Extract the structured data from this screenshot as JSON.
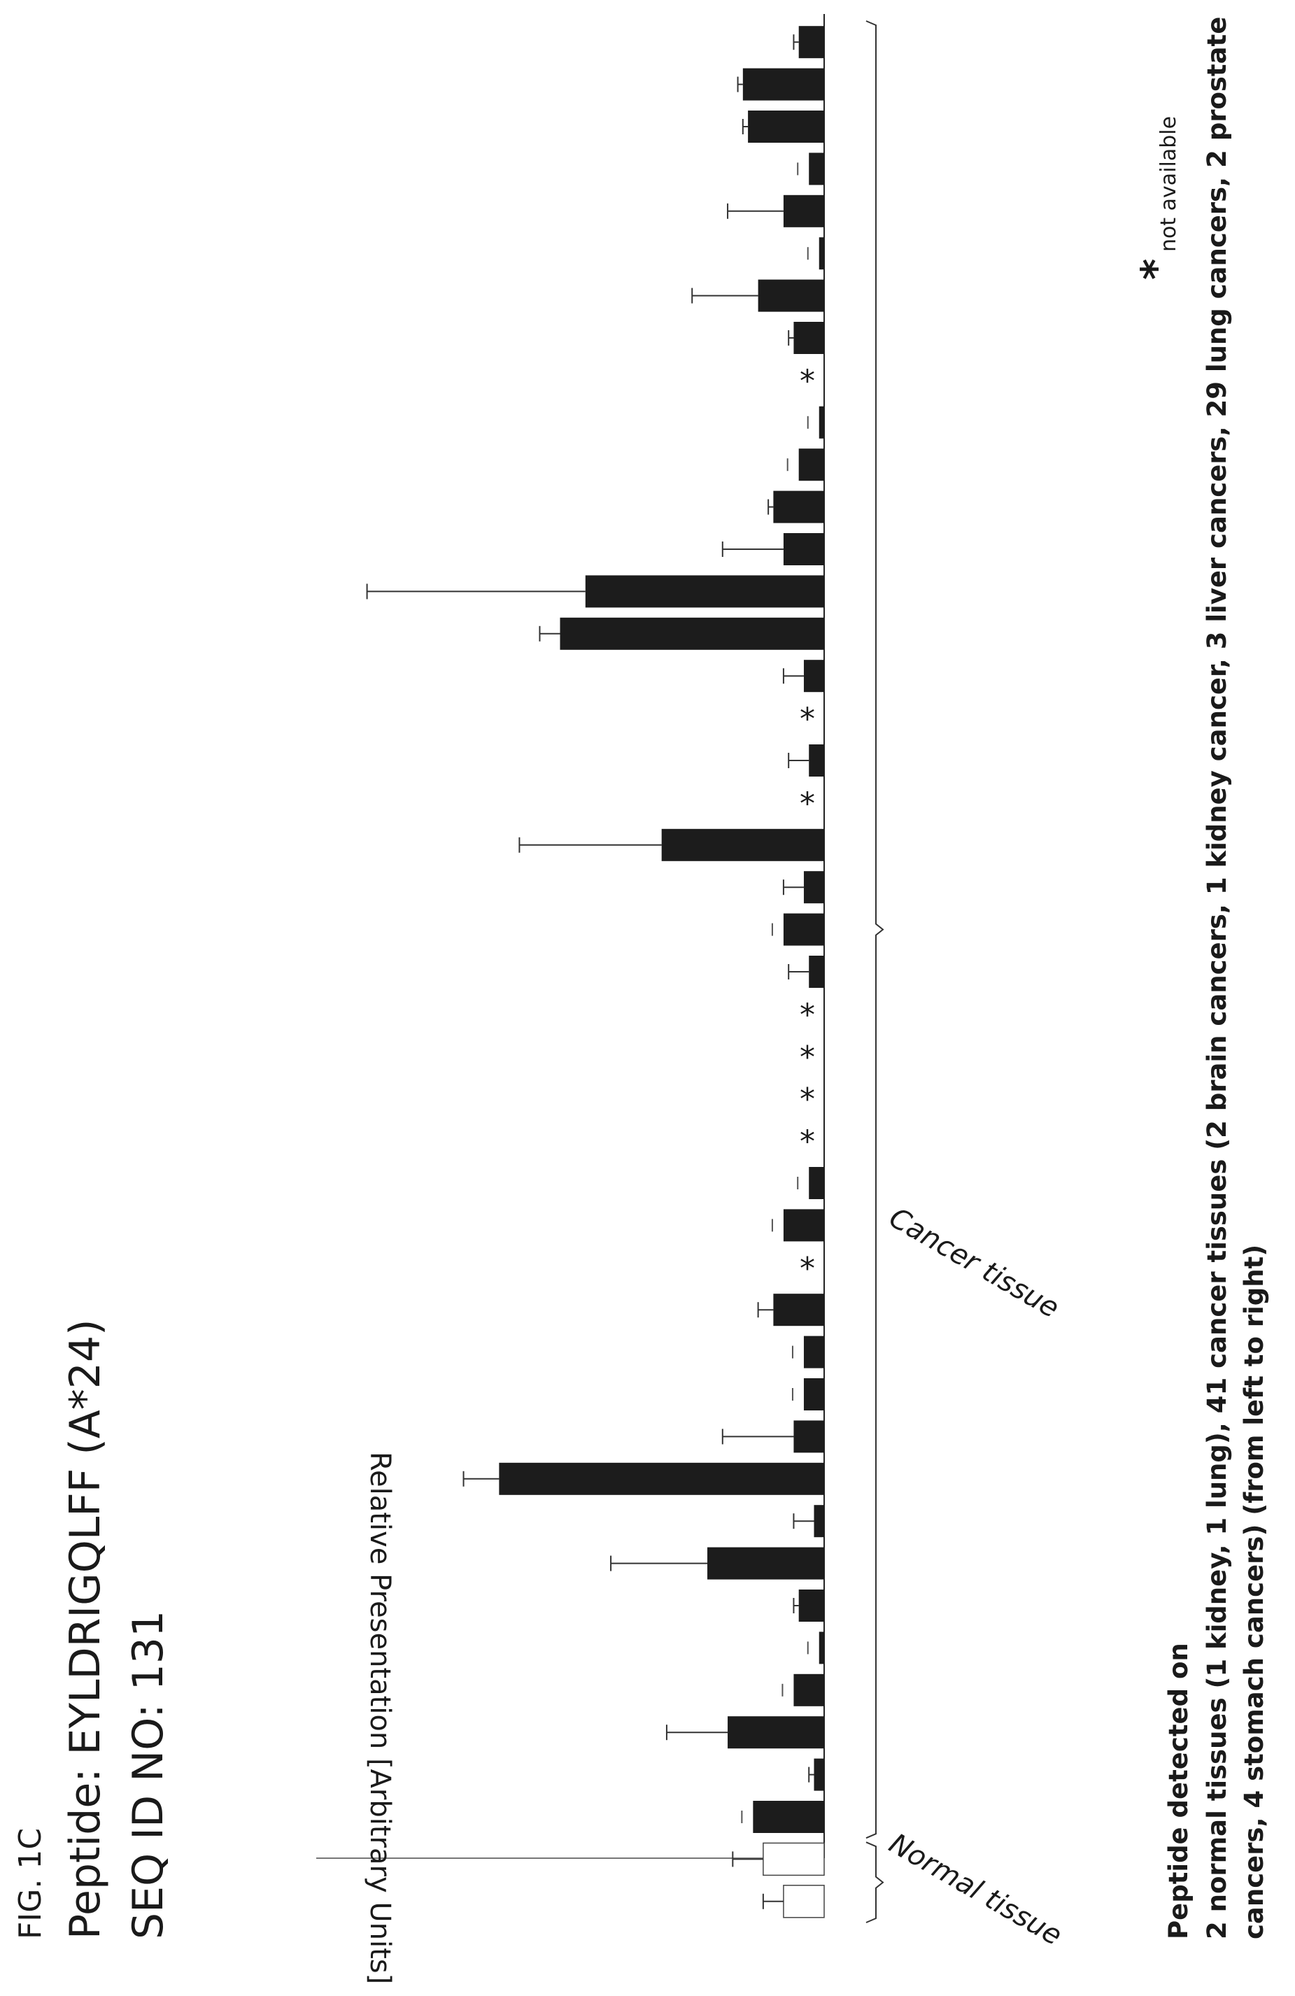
{
  "figure": {
    "label": "FIG. 1C",
    "peptide_line": "Peptide: EYLDRIGQLFF (A*24)",
    "seq_line": "SEQ ID NO: 131"
  },
  "caption": {
    "line1": "Peptide detected on",
    "line2": "2 normal tissues (1 kidney, 1 lung), 41 cancer tissues (2 brain cancers, 1 kidney cancer, 3 liver cancers, 29 lung cancers, 2 prostate",
    "line3": "cancers, 4 stomach cancers) (from left to right)"
  },
  "footnote": {
    "symbol": "*",
    "text": "not available"
  },
  "chart_data": {
    "type": "bar",
    "orientation": "rotated 90 degrees clockwise on page; samples run top to bottom",
    "ylabel": "Relative Presentation [Arbitrary Units]",
    "ylim": [
      0,
      100
    ],
    "groups": [
      {
        "label": "Normal tissue",
        "count": 2
      },
      {
        "label": "Cancer tissue",
        "count": 41
      }
    ],
    "bar_color": "#1c1c1c",
    "normal_bar_color": "#ffffff",
    "missing_marker": "*",
    "values": [
      8,
      12,
      14,
      2,
      19,
      6,
      1,
      5,
      23,
      2,
      64,
      6,
      4,
      4,
      10,
      null,
      8,
      3,
      null,
      null,
      null,
      null,
      3,
      8,
      4,
      32,
      null,
      3,
      null,
      4,
      52,
      47,
      8,
      10,
      5,
      1,
      null,
      6,
      13,
      1,
      8,
      3,
      15,
      16,
      5
    ],
    "errors": [
      4,
      6,
      0,
      1,
      12,
      0,
      0,
      1,
      19,
      4,
      7,
      14,
      0,
      0,
      3,
      null,
      0,
      0,
      null,
      null,
      null,
      null,
      4,
      0,
      4,
      28,
      null,
      4,
      null,
      4,
      4,
      43,
      12,
      1,
      0,
      0,
      null,
      1,
      13,
      0,
      11,
      0,
      1,
      1,
      1
    ]
  }
}
